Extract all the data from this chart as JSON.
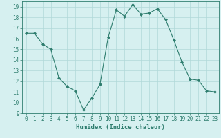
{
  "x": [
    0,
    1,
    2,
    3,
    4,
    5,
    6,
    7,
    8,
    9,
    10,
    11,
    12,
    13,
    14,
    15,
    16,
    17,
    18,
    19,
    20,
    21,
    22,
    23
  ],
  "y": [
    16.5,
    16.5,
    15.5,
    15.0,
    12.3,
    11.5,
    11.1,
    9.3,
    10.4,
    11.7,
    16.1,
    18.7,
    18.1,
    19.2,
    18.3,
    18.4,
    18.8,
    17.8,
    15.9,
    13.8,
    12.2,
    12.1,
    11.1,
    11.0
  ],
  "line_color": "#2e7d6e",
  "marker": "D",
  "marker_size": 2.0,
  "bg_color": "#d6f0f0",
  "grid_color": "#b0d8d8",
  "tick_color": "#2e7d6e",
  "xlabel": "Humidex (Indice chaleur)",
  "xlim": [
    -0.5,
    23.5
  ],
  "ylim": [
    9,
    19.5
  ],
  "yticks": [
    9,
    10,
    11,
    12,
    13,
    14,
    15,
    16,
    17,
    18,
    19
  ],
  "xticks": [
    0,
    1,
    2,
    3,
    4,
    5,
    6,
    7,
    8,
    9,
    10,
    11,
    12,
    13,
    14,
    15,
    16,
    17,
    18,
    19,
    20,
    21,
    22,
    23
  ],
  "label_fontsize": 6.5,
  "tick_fontsize": 5.5,
  "linewidth": 0.8
}
